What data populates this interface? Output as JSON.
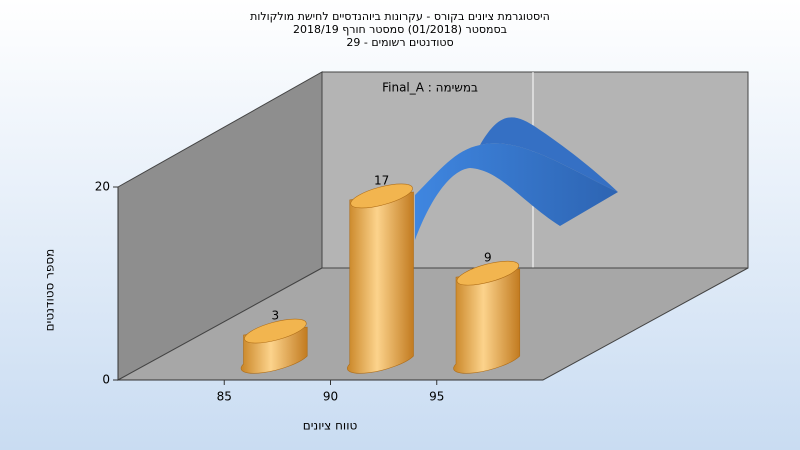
{
  "chart_data": {
    "type": "histogram",
    "title": [
      "היסטוגרמת ציונים בקורס - עקרונות ביוהנדסיים לחישת מולקולות",
      "בסמסטר (01/2018) סמסטר חורף 2018/19",
      "סטודנטים רשומים - 29"
    ],
    "annotation": "במשימה : Final_A",
    "x_label": "טווח ציונים",
    "y_label": "מספר סטודנטים",
    "bins": [
      85,
      90,
      95,
      100
    ],
    "values": [
      3,
      17,
      9
    ],
    "color": "#e8a23c",
    "xlim": [
      80,
      100
    ],
    "xticks": [
      85,
      90,
      95
    ],
    "ylim": [
      0,
      20
    ],
    "yticks": [
      0,
      20
    ]
  }
}
